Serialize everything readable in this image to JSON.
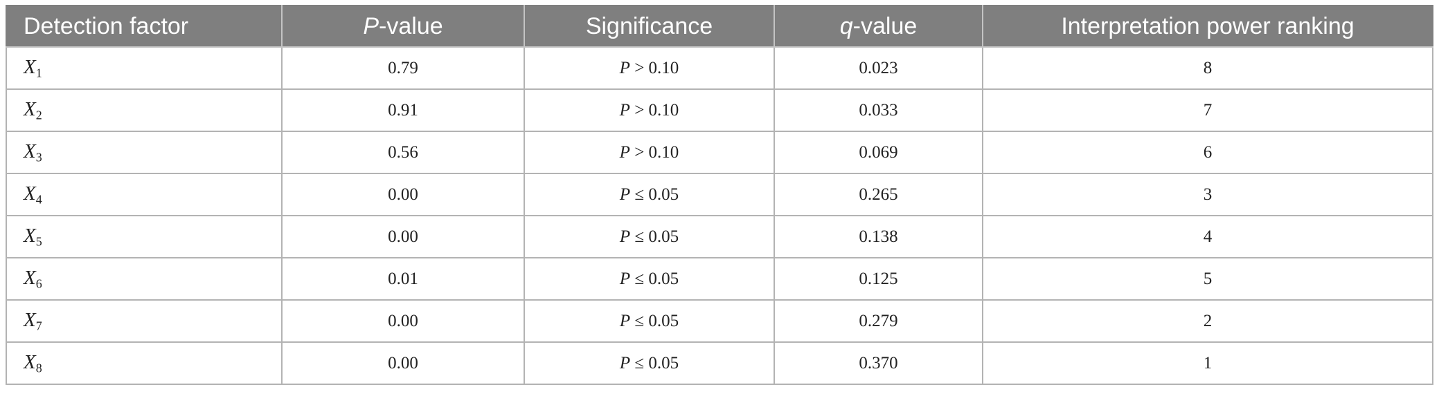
{
  "table": {
    "headers": [
      {
        "italic": "",
        "text": "Detection factor"
      },
      {
        "italic": "P",
        "text": "-value"
      },
      {
        "italic": "",
        "text": "Significance"
      },
      {
        "italic": "q",
        "text": "-value"
      },
      {
        "italic": "",
        "text": "Interpretation power ranking"
      }
    ],
    "rows": [
      {
        "factor": "X",
        "sub": "1",
        "p_value": "0.79",
        "sig_symbol": "P",
        "sig_rest": " > 0.10",
        "q_value": "0.023",
        "rank": "8"
      },
      {
        "factor": "X",
        "sub": "2",
        "p_value": "0.91",
        "sig_symbol": "P",
        "sig_rest": " > 0.10",
        "q_value": "0.033",
        "rank": "7"
      },
      {
        "factor": "X",
        "sub": "3",
        "p_value": "0.56",
        "sig_symbol": "P",
        "sig_rest": " > 0.10",
        "q_value": "0.069",
        "rank": "6"
      },
      {
        "factor": "X",
        "sub": "4",
        "p_value": "0.00",
        "sig_symbol": "P",
        "sig_rest": " ≤ 0.05",
        "q_value": "0.265",
        "rank": "3"
      },
      {
        "factor": "X",
        "sub": "5",
        "p_value": "0.00",
        "sig_symbol": "P",
        "sig_rest": " ≤ 0.05",
        "q_value": "0.138",
        "rank": "4"
      },
      {
        "factor": "X",
        "sub": "6",
        "p_value": "0.01",
        "sig_symbol": "P",
        "sig_rest": " ≤ 0.05",
        "q_value": "0.125",
        "rank": "5"
      },
      {
        "factor": "X",
        "sub": "7",
        "p_value": "0.00",
        "sig_symbol": "P",
        "sig_rest": " ≤ 0.05",
        "q_value": "0.279",
        "rank": "2"
      },
      {
        "factor": "X",
        "sub": "8",
        "p_value": "0.00",
        "sig_symbol": "P",
        "sig_rest": " ≤ 0.05",
        "q_value": "0.370",
        "rank": "1"
      }
    ]
  }
}
